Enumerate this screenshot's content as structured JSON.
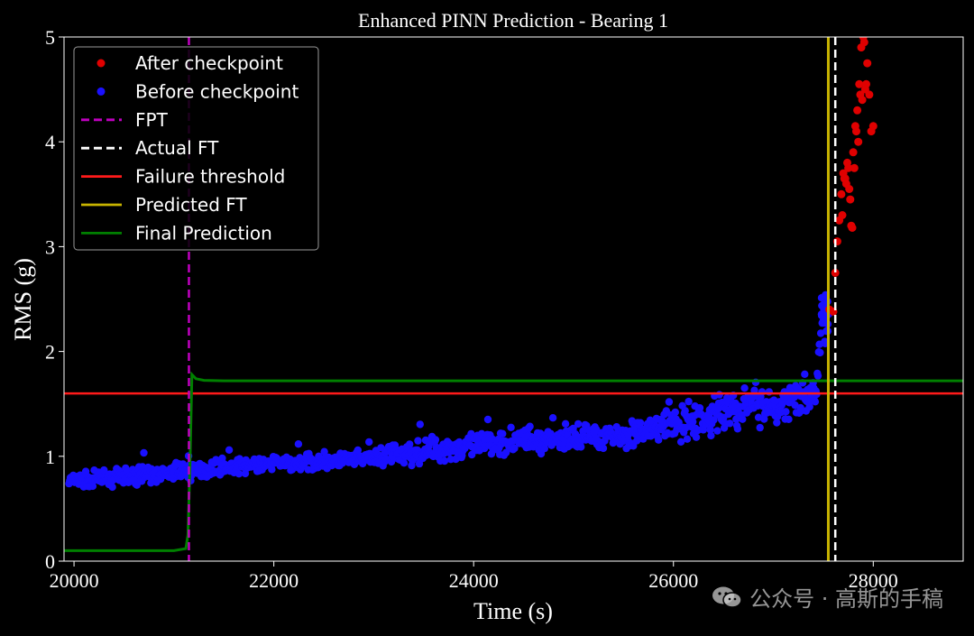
{
  "chart_data": {
    "type": "scatter",
    "title": "Enhanced PINN Prediction - Bearing 1",
    "xlabel": "Time (s)",
    "ylabel": "RMS (g)",
    "xlim": [
      19900,
      28900
    ],
    "ylim": [
      0,
      5
    ],
    "xticks": [
      20000,
      22000,
      24000,
      26000,
      28000
    ],
    "yticks": [
      0,
      1,
      2,
      3,
      4,
      5
    ],
    "legend": [
      "After checkpoint",
      "Before checkpoint",
      "FPT",
      "Actual FT",
      "Failure threshold",
      "Predicted FT",
      "Final Prediction"
    ],
    "legend_position": "upper-left",
    "colors": {
      "after": "#e00000",
      "before": "#1a10ff",
      "fpt": "#c000c0",
      "actual_ft": "#ffffff",
      "threshold": "#ff1a1a",
      "predicted_ft": "#c8b400",
      "final_prediction": "#008000",
      "axes": "#ffffff",
      "background": "#000000"
    },
    "fpt": 21150,
    "actual_ft": 27620,
    "predicted_ft": 27550,
    "failure_threshold": 1.6,
    "final_prediction": {
      "x": [
        19900,
        21000,
        21120,
        21140,
        21160,
        21180,
        21220,
        21300,
        21500,
        22500,
        24500,
        26500,
        28900
      ],
      "y": [
        0.1,
        0.1,
        0.12,
        0.25,
        0.9,
        1.78,
        1.74,
        1.725,
        1.72,
        1.72,
        1.72,
        1.72,
        1.72
      ]
    },
    "before_checkpoint_trend": {
      "x": [
        19950,
        20500,
        21000,
        21500,
        22000,
        22500,
        23000,
        23500,
        24000,
        24500,
        25000,
        25500,
        26000,
        26300,
        26600,
        26900,
        27200,
        27420,
        27480,
        27560
      ],
      "y": [
        0.76,
        0.8,
        0.84,
        0.9,
        0.93,
        0.95,
        0.98,
        1.05,
        1.1,
        1.16,
        1.18,
        1.2,
        1.3,
        1.35,
        1.45,
        1.5,
        1.52,
        1.58,
        2.2,
        2.5
      ]
    },
    "after_checkpoint": {
      "x": [
        27560,
        27600,
        27620,
        27640,
        27660,
        27680,
        27700,
        27720,
        27740,
        27760,
        27780,
        27800,
        27820,
        27840,
        27860,
        27880,
        27900,
        27920,
        27940,
        27960,
        27980,
        28000,
        27690,
        27730,
        27770,
        27810,
        27850,
        27890,
        27930,
        27710,
        27750,
        27790,
        27830,
        27870,
        27910
      ],
      "y": [
        2.4,
        2.38,
        2.75,
        3.05,
        3.25,
        3.5,
        3.7,
        3.65,
        3.8,
        3.55,
        3.2,
        3.9,
        4.15,
        4.3,
        4.55,
        4.9,
        5.0,
        4.5,
        4.75,
        4.45,
        4.1,
        4.15,
        3.3,
        3.6,
        3.45,
        3.75,
        4.0,
        4.4,
        4.55,
        3.65,
        3.75,
        3.18,
        4.1,
        4.45,
        4.95
      ]
    }
  },
  "watermark": "公众号 · 高斯的手稿"
}
